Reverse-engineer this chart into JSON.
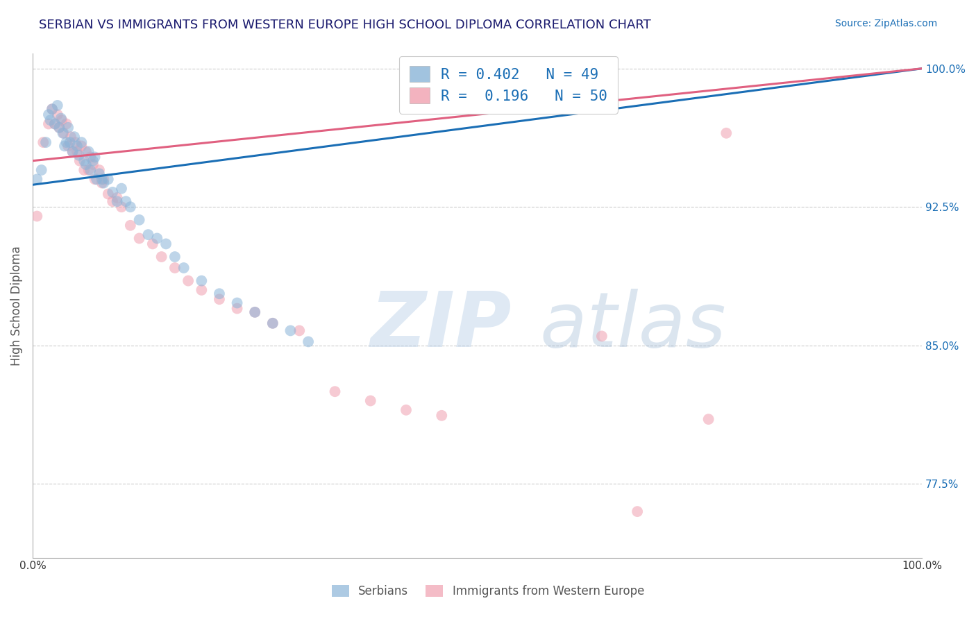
{
  "title": "SERBIAN VS IMMIGRANTS FROM WESTERN EUROPE HIGH SCHOOL DIPLOMA CORRELATION CHART",
  "source": "Source: ZipAtlas.com",
  "ylabel": "High School Diploma",
  "xlim": [
    0.0,
    1.0
  ],
  "ylim": [
    0.735,
    1.008
  ],
  "yticks": [
    0.775,
    0.85,
    0.925,
    1.0
  ],
  "ytick_labels": [
    "77.5%",
    "85.0%",
    "92.5%",
    "100.0%"
  ],
  "xtick_labels": [
    "0.0%",
    "100.0%"
  ],
  "xticks": [
    0.0,
    1.0
  ],
  "title_color": "#1a1a6e",
  "title_fontsize": 13,
  "source_color": "#1a6eb5",
  "source_fontsize": 10,
  "ytick_color": "#1a6eb5",
  "xtick_color": "#333333",
  "ylabel_color": "#555555",
  "legend_R1": "R = 0.402",
  "legend_N1": "N = 49",
  "legend_R2": "R = 0.196",
  "legend_N2": "N = 50",
  "legend_R_color": "#1a6eb5",
  "legend_label1": "Serbians",
  "legend_label2": "Immigrants from Western Europe",
  "scatter_blue_color": "#8ab4d8",
  "scatter_pink_color": "#f0a0b0",
  "scatter_marker_size": 130,
  "scatter_alpha": 0.55,
  "trend_blue_color": "#1a6eb5",
  "trend_pink_color": "#e06080",
  "trend_linewidth": 2.2,
  "blue_x": [
    0.005,
    0.01,
    0.015,
    0.018,
    0.02,
    0.022,
    0.025,
    0.028,
    0.03,
    0.032,
    0.034,
    0.036,
    0.038,
    0.04,
    0.042,
    0.045,
    0.047,
    0.05,
    0.052,
    0.055,
    0.058,
    0.06,
    0.063,
    0.065,
    0.068,
    0.07,
    0.072,
    0.075,
    0.078,
    0.08,
    0.085,
    0.09,
    0.095,
    0.1,
    0.105,
    0.11,
    0.12,
    0.13,
    0.14,
    0.15,
    0.16,
    0.17,
    0.19,
    0.21,
    0.23,
    0.25,
    0.27,
    0.29,
    0.31
  ],
  "blue_y": [
    0.94,
    0.945,
    0.96,
    0.975,
    0.972,
    0.978,
    0.97,
    0.98,
    0.968,
    0.973,
    0.965,
    0.958,
    0.96,
    0.968,
    0.96,
    0.955,
    0.963,
    0.958,
    0.953,
    0.96,
    0.95,
    0.948,
    0.955,
    0.945,
    0.95,
    0.952,
    0.94,
    0.943,
    0.94,
    0.938,
    0.94,
    0.933,
    0.928,
    0.935,
    0.928,
    0.925,
    0.918,
    0.91,
    0.908,
    0.905,
    0.898,
    0.892,
    0.885,
    0.878,
    0.873,
    0.868,
    0.862,
    0.858,
    0.852
  ],
  "pink_x": [
    0.005,
    0.012,
    0.018,
    0.022,
    0.025,
    0.028,
    0.03,
    0.033,
    0.035,
    0.038,
    0.04,
    0.043,
    0.045,
    0.048,
    0.05,
    0.053,
    0.055,
    0.058,
    0.06,
    0.063,
    0.065,
    0.068,
    0.07,
    0.075,
    0.078,
    0.08,
    0.085,
    0.09,
    0.095,
    0.1,
    0.11,
    0.12,
    0.135,
    0.145,
    0.16,
    0.175,
    0.19,
    0.21,
    0.23,
    0.25,
    0.27,
    0.3,
    0.34,
    0.38,
    0.42,
    0.46,
    0.64,
    0.68,
    0.76,
    0.78
  ],
  "pink_y": [
    0.92,
    0.96,
    0.97,
    0.978,
    0.97,
    0.975,
    0.968,
    0.972,
    0.965,
    0.97,
    0.958,
    0.963,
    0.955,
    0.96,
    0.955,
    0.95,
    0.958,
    0.945,
    0.955,
    0.945,
    0.952,
    0.948,
    0.94,
    0.945,
    0.938,
    0.94,
    0.932,
    0.928,
    0.93,
    0.925,
    0.915,
    0.908,
    0.905,
    0.898,
    0.892,
    0.885,
    0.88,
    0.875,
    0.87,
    0.868,
    0.862,
    0.858,
    0.825,
    0.82,
    0.815,
    0.812,
    0.855,
    0.76,
    0.81,
    0.965
  ],
  "trend_blue_x0": 0.0,
  "trend_blue_y0": 0.937,
  "trend_blue_x1": 1.0,
  "trend_blue_y1": 1.0,
  "trend_pink_x0": 0.0,
  "trend_pink_y0": 0.95,
  "trend_pink_x1": 1.0,
  "trend_pink_y1": 1.0
}
